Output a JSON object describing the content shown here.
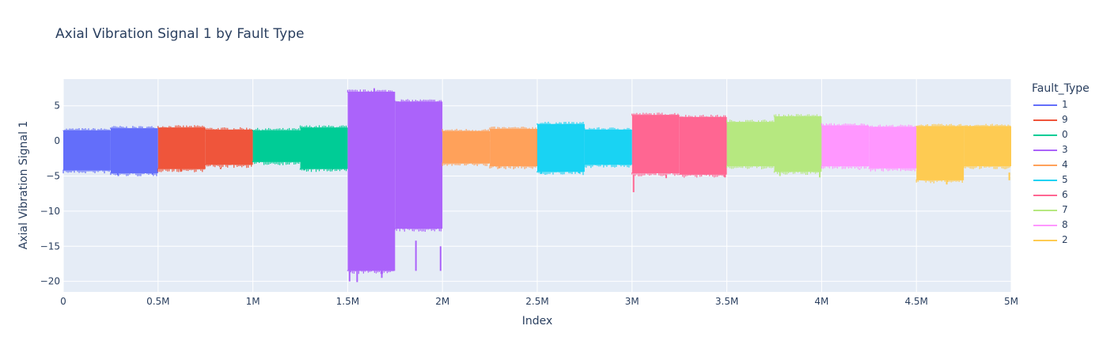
{
  "chart_data": {
    "type": "line",
    "title": "Axial Vibration Signal 1 by Fault Type",
    "xlabel": "Index",
    "ylabel": "Axial Vibration Signal 1",
    "legend_title": "Fault_Type",
    "xlim": [
      0,
      5000000
    ],
    "ylim": [
      -21.5,
      8.8
    ],
    "x_ticks": [
      {
        "value": 0,
        "label": "0"
      },
      {
        "value": 500000,
        "label": "0.5M"
      },
      {
        "value": 1000000,
        "label": "1M"
      },
      {
        "value": 1500000,
        "label": "1.5M"
      },
      {
        "value": 2000000,
        "label": "2M"
      },
      {
        "value": 2500000,
        "label": "2.5M"
      },
      {
        "value": 3000000,
        "label": "3M"
      },
      {
        "value": 3500000,
        "label": "3.5M"
      },
      {
        "value": 4000000,
        "label": "4M"
      },
      {
        "value": 4500000,
        "label": "4.5M"
      },
      {
        "value": 5000000,
        "label": "5M"
      }
    ],
    "y_ticks": [
      {
        "value": 5,
        "label": "5"
      },
      {
        "value": 0,
        "label": "0"
      },
      {
        "value": -5,
        "label": "−5"
      },
      {
        "value": -10,
        "label": "−10"
      },
      {
        "value": -15,
        "label": "−15"
      },
      {
        "value": -20,
        "label": "−20"
      }
    ],
    "grid": true,
    "legend_position": "right",
    "series": [
      {
        "name": "1",
        "color": "#636efa",
        "x_range": [
          0,
          500000
        ],
        "segments": [
          {
            "x0": 0,
            "x1": 250000,
            "max": 1.5,
            "min": -4.2
          },
          {
            "x0": 250000,
            "x1": 500000,
            "max": 1.8,
            "min": -4.6
          }
        ],
        "spikes": [
          {
            "x": 90000,
            "y": -4.6
          },
          {
            "x": 290000,
            "y": -5.0
          },
          {
            "x": 470000,
            "y": -4.8
          }
        ]
      },
      {
        "name": "9",
        "color": "#ef553b",
        "x_range": [
          500000,
          1000000
        ],
        "segments": [
          {
            "x0": 500000,
            "x1": 750000,
            "max": 1.9,
            "min": -4.0
          },
          {
            "x0": 750000,
            "x1": 1000000,
            "max": 1.6,
            "min": -3.4
          }
        ],
        "spikes": [
          {
            "x": 620000,
            "y": -4.4
          },
          {
            "x": 830000,
            "y": -3.8
          }
        ]
      },
      {
        "name": "0",
        "color": "#00cc96",
        "x_range": [
          1000000,
          1500000
        ],
        "segments": [
          {
            "x0": 1000000,
            "x1": 1250000,
            "max": 1.5,
            "min": -3.0
          },
          {
            "x0": 1250000,
            "x1": 1500000,
            "max": 1.9,
            "min": -4.0
          }
        ],
        "spikes": [
          {
            "x": 1270000,
            "y": -4.2
          },
          {
            "x": 1420000,
            "y": -4.1
          }
        ]
      },
      {
        "name": "3",
        "color": "#ab63fa",
        "x_range": [
          1500000,
          2000000
        ],
        "segments": [
          {
            "x0": 1500000,
            "x1": 1750000,
            "max": 7.0,
            "min": -18.5
          },
          {
            "x0": 1750000,
            "x1": 2000000,
            "max": 5.6,
            "min": -12.5
          }
        ],
        "spikes": [
          {
            "x": 1510000,
            "y": -20.0
          },
          {
            "x": 1550000,
            "y": -20.1
          },
          {
            "x": 1640000,
            "y": 7.5
          },
          {
            "x": 1680000,
            "y": -19.5
          },
          {
            "x": 1860000,
            "y": -14.2
          },
          {
            "x": 1990000,
            "y": -15.0
          }
        ]
      },
      {
        "name": "4",
        "color": "#ffa15a",
        "x_range": [
          2000000,
          2500000
        ],
        "segments": [
          {
            "x0": 2000000,
            "x1": 2250000,
            "max": 1.4,
            "min": -3.2
          },
          {
            "x0": 2250000,
            "x1": 2500000,
            "max": 1.7,
            "min": -3.6
          }
        ],
        "spikes": [
          {
            "x": 2300000,
            "y": -3.9
          }
        ]
      },
      {
        "name": "5",
        "color": "#19d3f3",
        "x_range": [
          2500000,
          3000000
        ],
        "segments": [
          {
            "x0": 2500000,
            "x1": 2750000,
            "max": 2.4,
            "min": -4.4
          },
          {
            "x0": 2750000,
            "x1": 3000000,
            "max": 1.6,
            "min": -3.4
          }
        ],
        "spikes": [
          {
            "x": 2520000,
            "y": -4.7
          },
          {
            "x": 2720000,
            "y": -4.6
          }
        ]
      },
      {
        "name": "6",
        "color": "#ff6692",
        "x_range": [
          3000000,
          3500000
        ],
        "segments": [
          {
            "x0": 3000000,
            "x1": 3250000,
            "max": 3.7,
            "min": -4.6
          },
          {
            "x0": 3250000,
            "x1": 3500000,
            "max": 3.4,
            "min": -4.8
          }
        ],
        "spikes": [
          {
            "x": 3008000,
            "y": -7.3
          },
          {
            "x": 3180000,
            "y": -5.3
          },
          {
            "x": 3490000,
            "y": -5.2
          }
        ]
      },
      {
        "name": "7",
        "color": "#b6e880",
        "x_range": [
          3500000,
          4000000
        ],
        "segments": [
          {
            "x0": 3500000,
            "x1": 3750000,
            "max": 2.7,
            "min": -3.6
          },
          {
            "x0": 3750000,
            "x1": 4000000,
            "max": 3.5,
            "min": -4.4
          }
        ],
        "spikes": [
          {
            "x": 3780000,
            "y": -5.0
          },
          {
            "x": 3990000,
            "y": -5.2
          }
        ]
      },
      {
        "name": "8",
        "color": "#ff97ff",
        "x_range": [
          4000000,
          4500000
        ],
        "segments": [
          {
            "x0": 4000000,
            "x1": 4250000,
            "max": 2.2,
            "min": -3.6
          },
          {
            "x0": 4250000,
            "x1": 4500000,
            "max": 2.0,
            "min": -3.9
          }
        ],
        "spikes": [
          {
            "x": 4200000,
            "y": -4.1
          }
        ]
      },
      {
        "name": "2",
        "color": "#fecb52",
        "x_range": [
          4500000,
          5000000
        ],
        "segments": [
          {
            "x0": 4500000,
            "x1": 4750000,
            "max": 2.1,
            "min": -5.6
          },
          {
            "x0": 4750000,
            "x1": 5000000,
            "max": 2.1,
            "min": -3.6
          }
        ],
        "spikes": [
          {
            "x": 4660000,
            "y": -6.2
          },
          {
            "x": 4990000,
            "y": -4.5
          }
        ]
      }
    ]
  }
}
